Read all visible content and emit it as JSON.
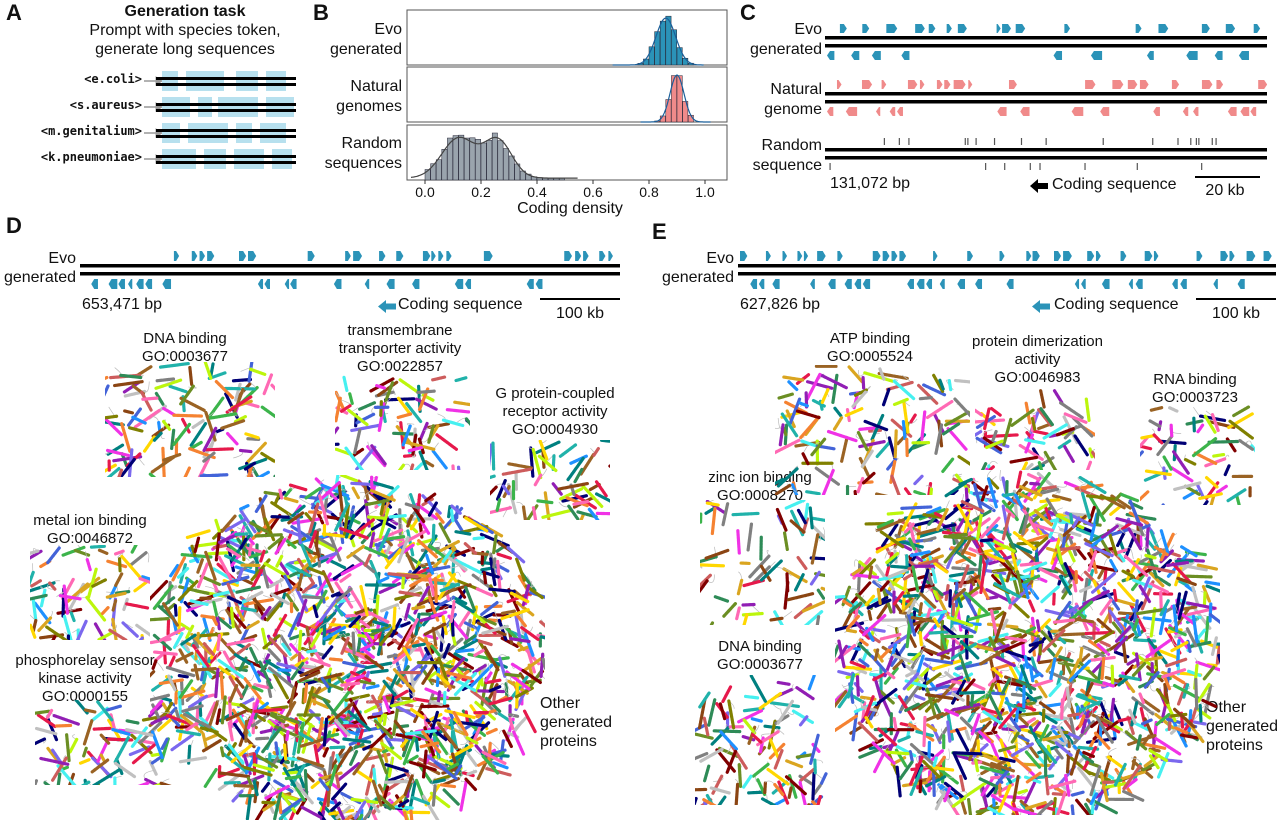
{
  "panel_letters": {
    "a": "A",
    "b": "B",
    "c": "C",
    "d": "D",
    "e": "E"
  },
  "colors": {
    "evo": "#2b93b8",
    "natural": "#f08a8a",
    "random": "#9aa4ad",
    "dark": "#000000",
    "track_light": "#b7e0ee"
  },
  "panelA": {
    "title": "Generation task",
    "subtitle_line1": "Prompt with species token,",
    "subtitle_line2": "generate long sequences",
    "tokens": [
      "<e.coli>",
      "<s.aureus>",
      "<m.genitalium>",
      "<k.pneumoniae>"
    ]
  },
  "panelB": {
    "row_labels": [
      [
        "Evo",
        "generated"
      ],
      [
        "Natural",
        "genomes"
      ],
      [
        "Random",
        "sequences"
      ]
    ],
    "xlabel": "Coding density",
    "ticks": [
      "0.0",
      "0.2",
      "0.4",
      "0.6",
      "0.8",
      "1.0"
    ]
  },
  "chart_data": {
    "type": "histogram",
    "xlabel": "Coding density",
    "xlim": [
      0.0,
      1.0
    ],
    "xticks": [
      0.0,
      0.2,
      0.4,
      0.6,
      0.8,
      1.0
    ],
    "series": [
      {
        "name": "Evo generated",
        "range": [
          0.72,
          0.95
        ],
        "mode": 0.86
      },
      {
        "name": "Natural genomes",
        "range": [
          0.82,
          0.97
        ],
        "mode": 0.9
      },
      {
        "name": "Random sequences",
        "range": [
          0.0,
          0.5
        ],
        "modes": [
          0.12,
          0.26
        ]
      }
    ]
  },
  "panelC": {
    "rows": [
      [
        "Evo",
        "generated"
      ],
      [
        "Natural",
        "genome"
      ],
      [
        "Random",
        "sequence"
      ]
    ],
    "length": "131,072 bp",
    "legend": "Coding sequence",
    "scale": "20 kb"
  },
  "panelD": {
    "track_label": [
      "Evo",
      "generated"
    ],
    "length": "653,471 bp",
    "legend": "Coding sequence",
    "scale": "100 kb",
    "clusters": [
      {
        "name": "DNA binding",
        "go": "GO:0003677"
      },
      {
        "name1": "transmembrane",
        "name2": "transporter activity",
        "go": "GO:0022857"
      },
      {
        "name1": "G protein-coupled",
        "name2": "receptor activity",
        "go": "GO:0004930"
      },
      {
        "name": "metal ion binding",
        "go": "GO:0046872"
      },
      {
        "name1": "phosphorelay sensor",
        "name2": "kinase activity",
        "go": "GO:0000155"
      }
    ],
    "other": [
      "Other",
      "generated",
      "proteins"
    ]
  },
  "panelE": {
    "track_label": [
      "Evo",
      "generated"
    ],
    "length": "627,826 bp",
    "legend": "Coding sequence",
    "scale": "100 kb",
    "clusters": [
      {
        "name": "ATP binding",
        "go": "GO:0005524"
      },
      {
        "name1": "protein dimerization",
        "name2": "activity",
        "go": "GO:0046983"
      },
      {
        "name": "RNA binding",
        "go": "GO:0003723"
      },
      {
        "name": "zinc ion binding",
        "go": "GO:0008270"
      },
      {
        "name": "DNA binding",
        "go": "GO:0003677"
      }
    ],
    "other": [
      "Other",
      "generated",
      "proteins"
    ]
  }
}
